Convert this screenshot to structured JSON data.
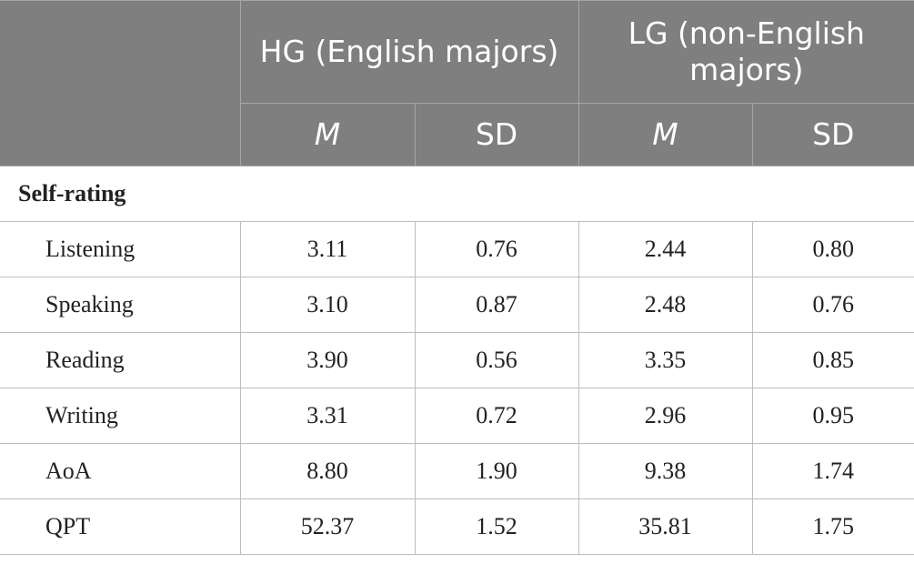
{
  "table": {
    "header": {
      "groups": [
        "HG (English majors)",
        "LG (non-English majors)"
      ],
      "subheaders": [
        "M",
        "SD",
        "M",
        "SD"
      ]
    },
    "section": "Self-rating",
    "rows": [
      [
        "Listening",
        "3.11",
        "0.76",
        "2.44",
        "0.80"
      ],
      [
        "Speaking",
        "3.10",
        "0.87",
        "2.48",
        "0.76"
      ],
      [
        "Reading",
        "3.90",
        "0.56",
        "3.35",
        "0.85"
      ],
      [
        "Writing",
        "3.31",
        "0.72",
        "2.96",
        "0.95"
      ],
      [
        "AoA",
        "8.80",
        "1.90",
        "9.38",
        "1.74"
      ],
      [
        "QPT",
        "52.37",
        "1.52",
        "35.81",
        "1.75"
      ]
    ]
  }
}
